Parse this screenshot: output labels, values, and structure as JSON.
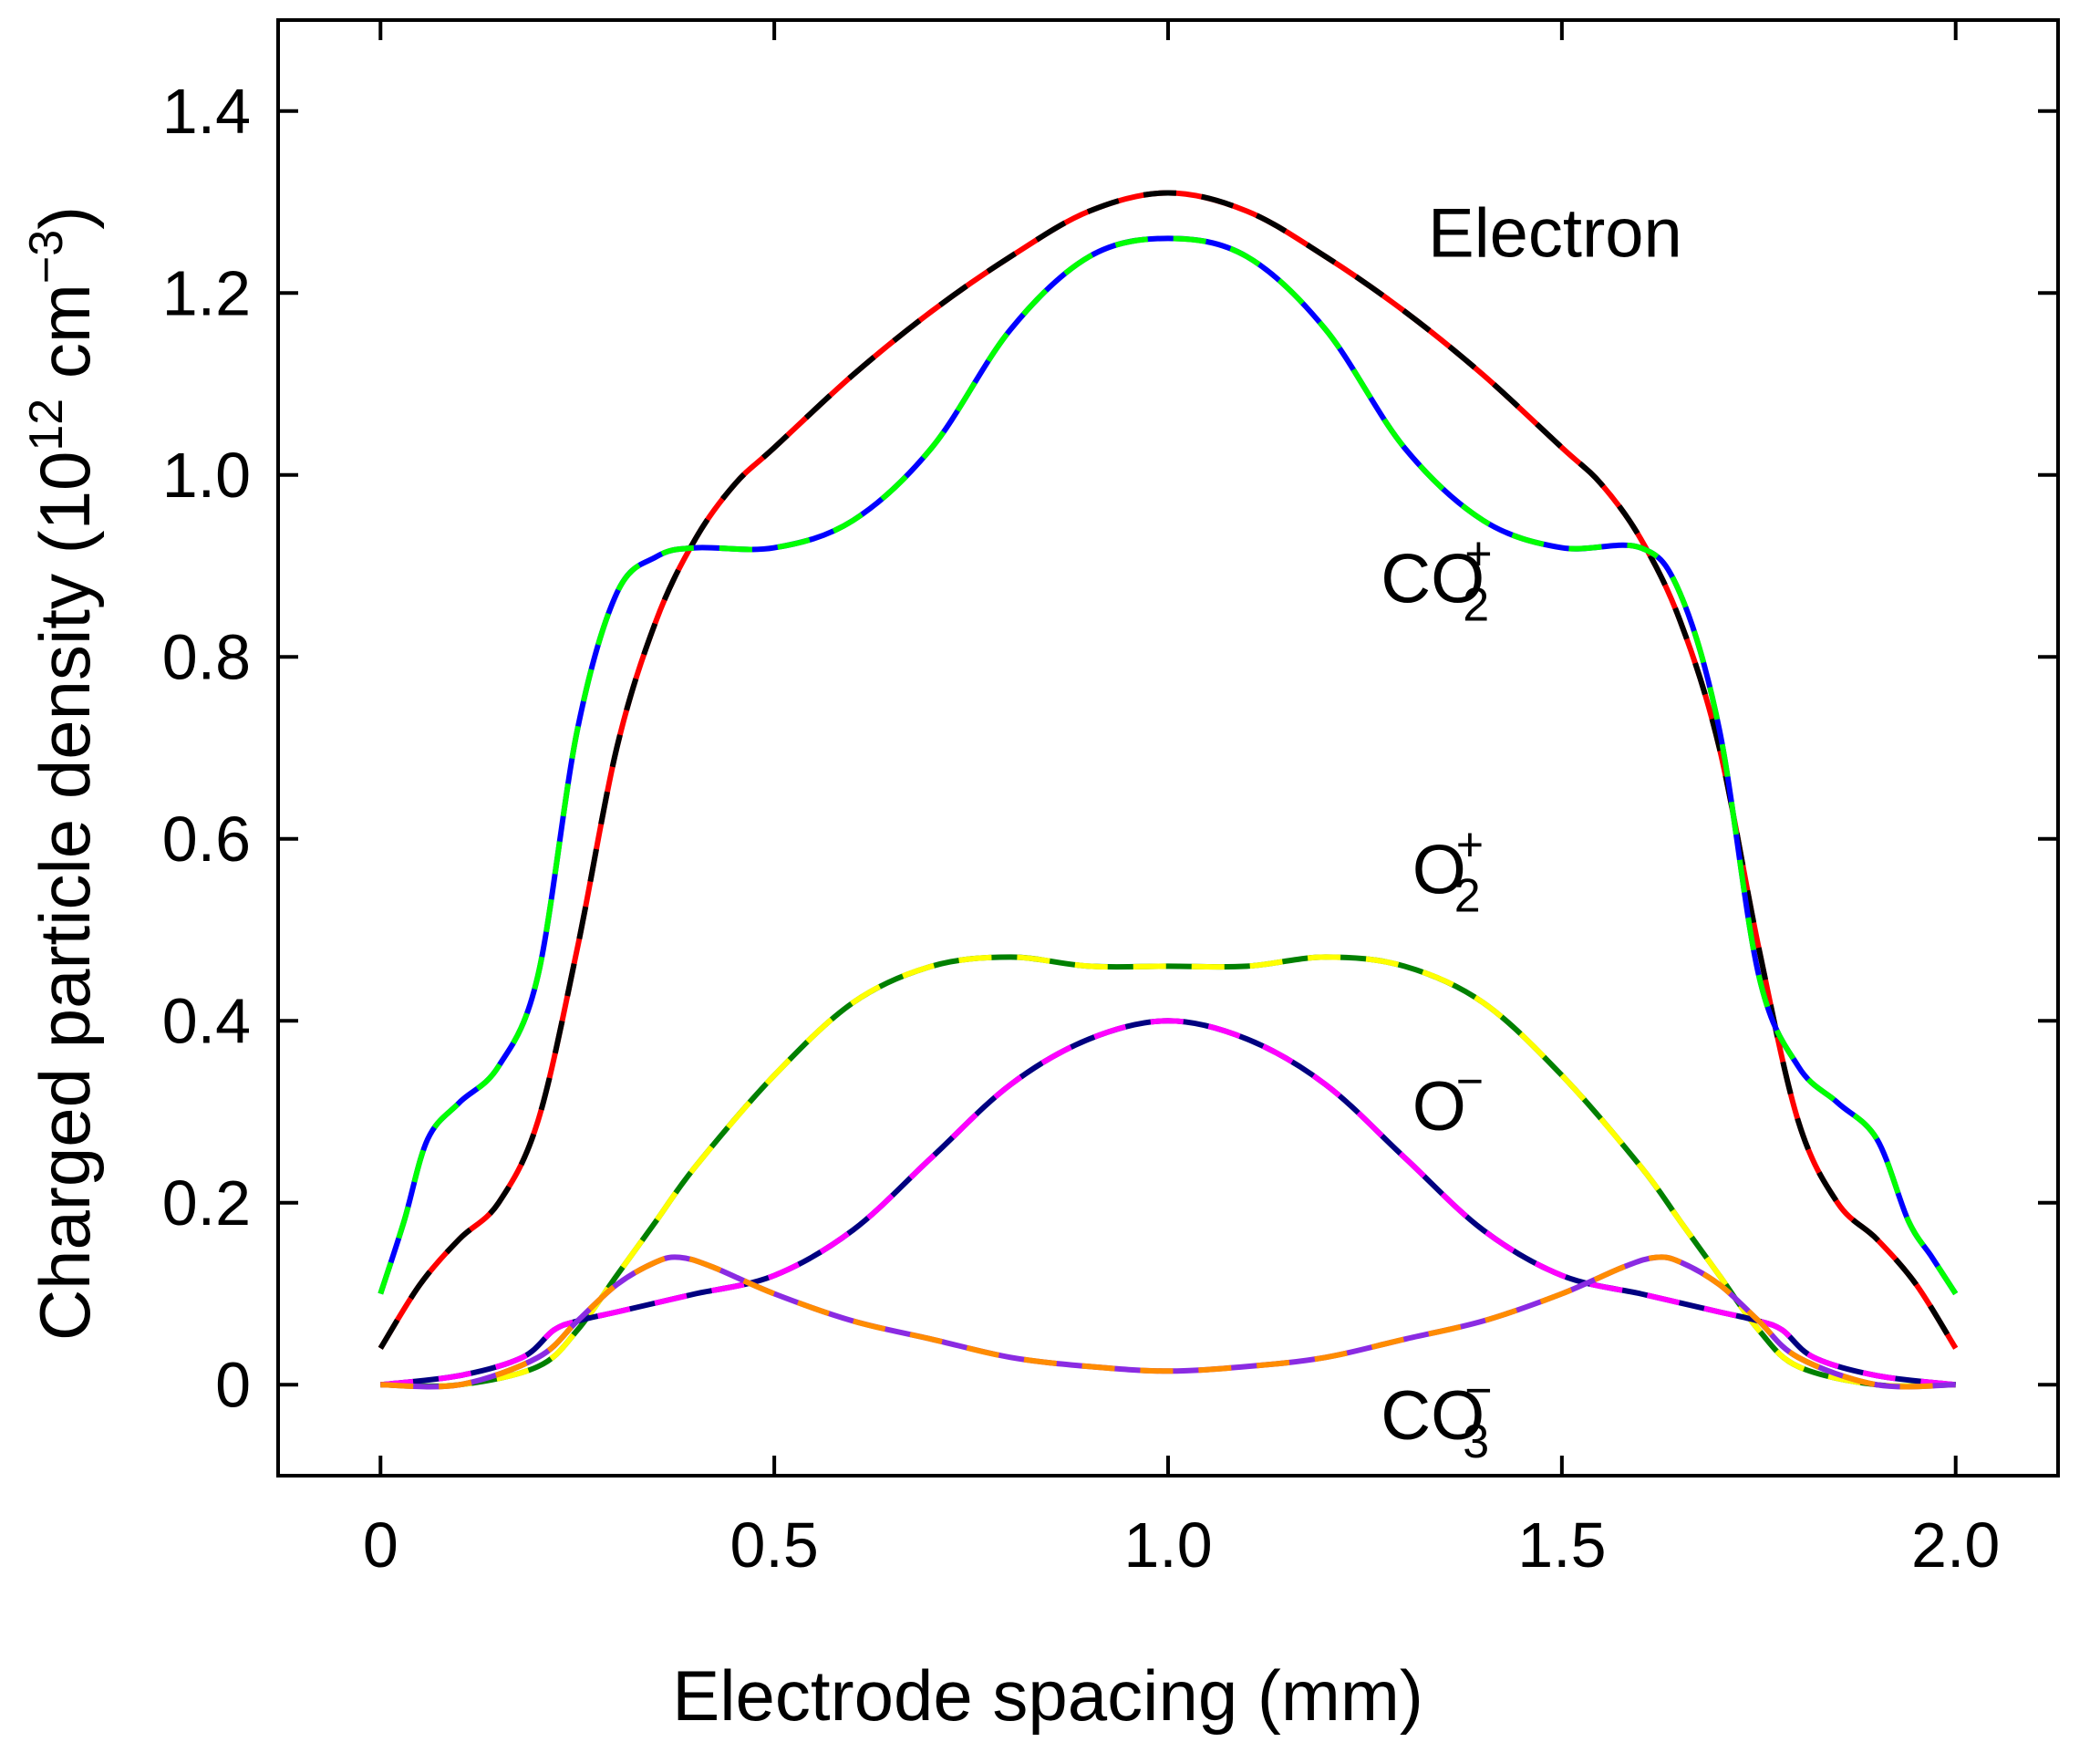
{
  "chart_data": {
    "type": "line",
    "xlabel": "Electrode spacing (mm)",
    "ylabel": {
      "prefix": "Charged particle density (10",
      "exp1": "12",
      "mid": " cm",
      "exp2": "−3",
      "suffix": ")"
    },
    "xlim": [
      -0.13,
      2.13
    ],
    "ylim": [
      -0.1,
      1.5
    ],
    "xticks": [
      0,
      0.5,
      1.0,
      1.5,
      2.0
    ],
    "xtick_labels": [
      "0",
      "0.5",
      "1.0",
      "1.5",
      "2.0"
    ],
    "yticks": [
      0,
      0.2,
      0.4,
      0.6,
      0.8,
      1.0,
      1.2,
      1.4
    ],
    "ytick_labels": [
      "0",
      "0.2",
      "0.4",
      "0.6",
      "0.8",
      "1.0",
      "1.2",
      "1.4"
    ],
    "grid": false,
    "legend": "none",
    "series": [
      {
        "name": "Electron",
        "colors": [
          "#ff0000",
          "#000000"
        ],
        "x": [
          0.0,
          0.05,
          0.1,
          0.15,
          0.2,
          0.25,
          0.3,
          0.35,
          0.4,
          0.45,
          0.5,
          0.6,
          0.7,
          0.8,
          0.9,
          1.0,
          1.1,
          1.2,
          1.3,
          1.4,
          1.5,
          1.55,
          1.6,
          1.65,
          1.7,
          1.75,
          1.8,
          1.85,
          1.9,
          1.95,
          2.0
        ],
        "y": [
          0.04,
          0.11,
          0.16,
          0.2,
          0.29,
          0.48,
          0.7,
          0.84,
          0.93,
          0.99,
          1.03,
          1.11,
          1.18,
          1.24,
          1.29,
          1.31,
          1.29,
          1.24,
          1.18,
          1.11,
          1.03,
          0.99,
          0.93,
          0.84,
          0.7,
          0.48,
          0.29,
          0.2,
          0.16,
          0.11,
          0.04
        ],
        "label": "Electron",
        "label_anchor": [
          1.33,
          1.24
        ]
      },
      {
        "name": "CO2+",
        "colors": [
          "#0000ff",
          "#00ff00"
        ],
        "x": [
          0.0,
          0.03,
          0.06,
          0.1,
          0.15,
          0.2,
          0.25,
          0.3,
          0.35,
          0.4,
          0.5,
          0.6,
          0.7,
          0.8,
          0.9,
          1.0,
          1.1,
          1.2,
          1.3,
          1.4,
          1.5,
          1.6,
          1.65,
          1.7,
          1.75,
          1.8,
          1.85,
          1.9,
          1.94,
          1.97,
          2.0
        ],
        "y": [
          0.1,
          0.18,
          0.27,
          0.31,
          0.35,
          0.45,
          0.72,
          0.87,
          0.91,
          0.92,
          0.92,
          0.95,
          1.03,
          1.16,
          1.24,
          1.26,
          1.24,
          1.16,
          1.03,
          0.95,
          0.92,
          0.92,
          0.87,
          0.72,
          0.45,
          0.35,
          0.31,
          0.27,
          0.18,
          0.14,
          0.1
        ],
        "label": "CO",
        "label_sub": "2",
        "label_sup": "+",
        "label_anchor": [
          1.27,
          0.86
        ]
      },
      {
        "name": "O2+",
        "colors": [
          "#008000",
          "#ffff00"
        ],
        "x": [
          0.0,
          0.1,
          0.2,
          0.25,
          0.3,
          0.35,
          0.4,
          0.5,
          0.6,
          0.7,
          0.8,
          0.9,
          1.0,
          1.1,
          1.2,
          1.3,
          1.4,
          1.5,
          1.6,
          1.65,
          1.7,
          1.75,
          1.8,
          1.9,
          2.0
        ],
        "y": [
          0.0,
          0.0,
          0.02,
          0.06,
          0.12,
          0.18,
          0.24,
          0.34,
          0.42,
          0.46,
          0.47,
          0.46,
          0.46,
          0.46,
          0.47,
          0.46,
          0.42,
          0.34,
          0.24,
          0.18,
          0.12,
          0.06,
          0.02,
          0.0,
          0.0
        ],
        "label": "O",
        "label_sub": "2",
        "label_sup": "+",
        "label_anchor": [
          1.31,
          0.54
        ]
      },
      {
        "name": "O-",
        "colors": [
          "#000080",
          "#ff00ff"
        ],
        "x": [
          0.0,
          0.1,
          0.18,
          0.22,
          0.25,
          0.3,
          0.35,
          0.4,
          0.5,
          0.6,
          0.7,
          0.8,
          0.9,
          1.0,
          1.1,
          1.2,
          1.3,
          1.4,
          1.5,
          1.6,
          1.65,
          1.7,
          1.75,
          1.78,
          1.82,
          1.9,
          2.0
        ],
        "y": [
          0.0,
          0.01,
          0.03,
          0.06,
          0.07,
          0.08,
          0.09,
          0.1,
          0.12,
          0.17,
          0.25,
          0.33,
          0.38,
          0.4,
          0.38,
          0.33,
          0.25,
          0.17,
          0.12,
          0.1,
          0.09,
          0.08,
          0.07,
          0.06,
          0.03,
          0.01,
          0.0
        ],
        "label": "O",
        "label_sup": "−",
        "label_anchor": [
          1.31,
          0.28
        ]
      },
      {
        "name": "CO3-",
        "colors": [
          "#8a2be2",
          "#ff8c00"
        ],
        "x": [
          0.0,
          0.1,
          0.2,
          0.25,
          0.3,
          0.35,
          0.38,
          0.42,
          0.5,
          0.6,
          0.7,
          0.8,
          0.9,
          1.0,
          1.1,
          1.2,
          1.3,
          1.4,
          1.5,
          1.58,
          1.62,
          1.65,
          1.7,
          1.75,
          1.8,
          1.9,
          2.0
        ],
        "y": [
          0.0,
          0.0,
          0.03,
          0.07,
          0.11,
          0.135,
          0.14,
          0.13,
          0.1,
          0.07,
          0.05,
          0.03,
          0.02,
          0.015,
          0.02,
          0.03,
          0.05,
          0.07,
          0.1,
          0.13,
          0.14,
          0.135,
          0.11,
          0.07,
          0.03,
          0.0,
          0.0
        ],
        "label": "CO",
        "label_sub": "3",
        "label_sup": "−",
        "label_anchor": [
          1.27,
          -0.06
        ]
      }
    ]
  }
}
